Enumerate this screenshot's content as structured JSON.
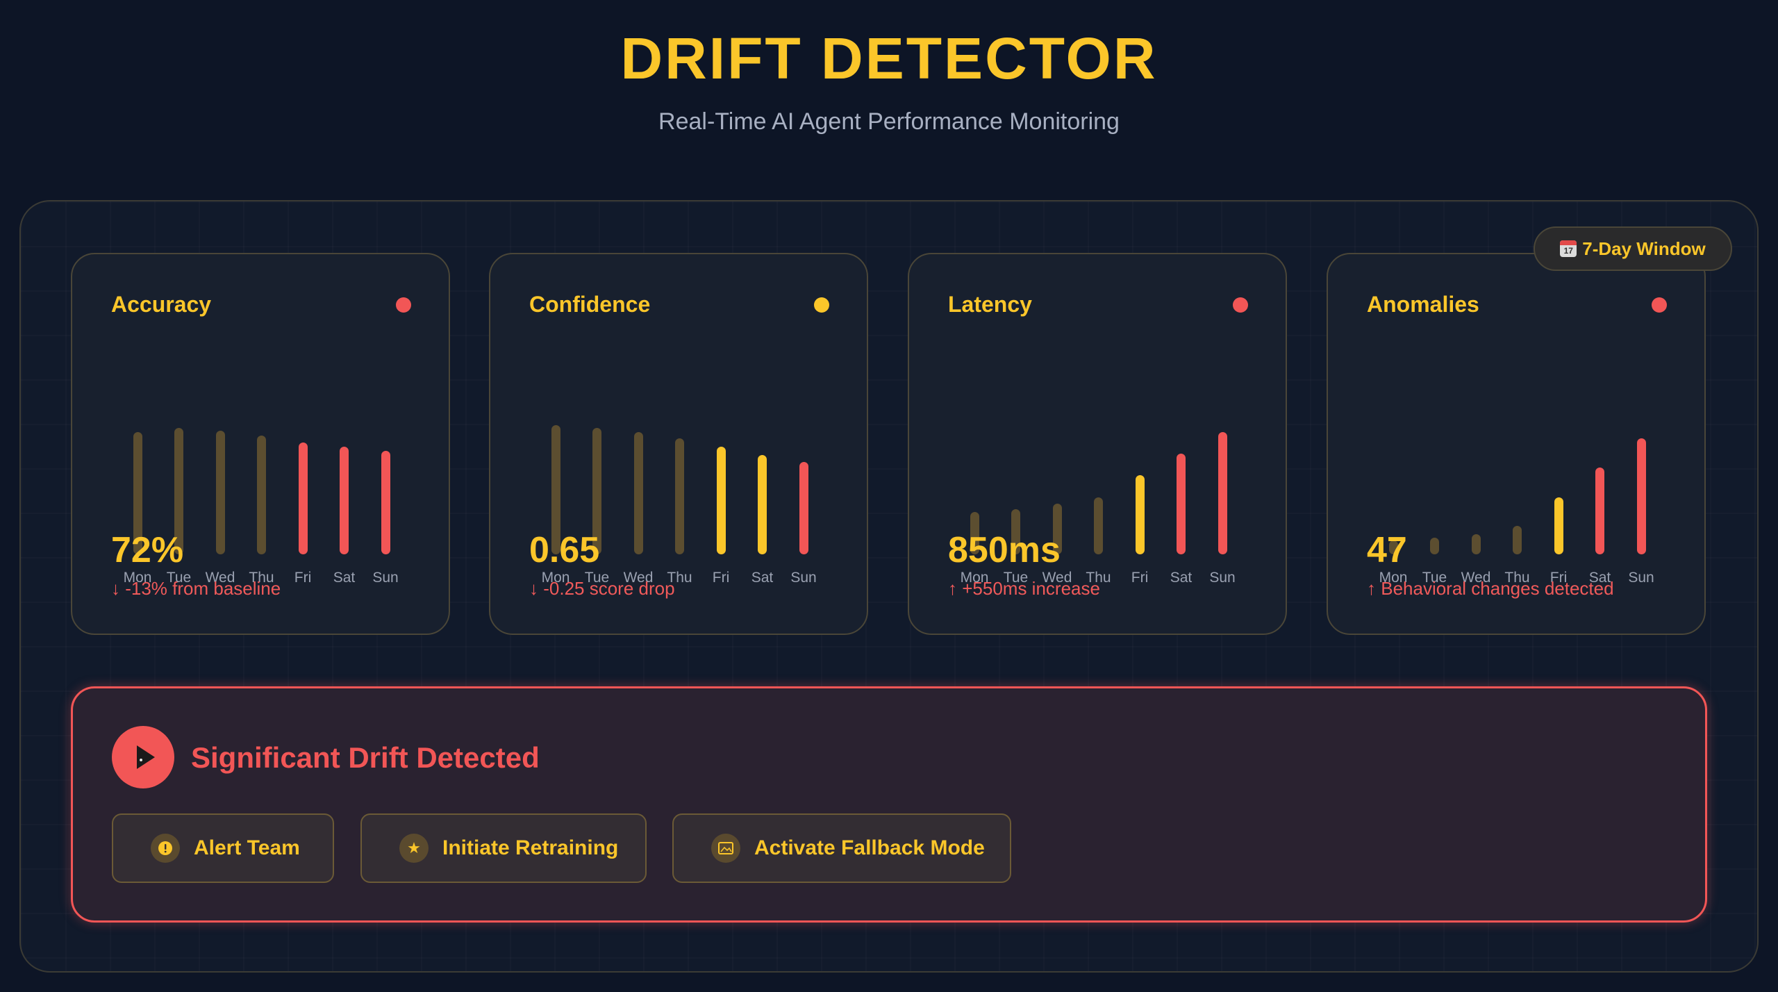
{
  "header": {
    "title": "DRIFT DETECTOR",
    "subtitle": "Real-Time AI Agent Performance Monitoring"
  },
  "window_badge": {
    "icon": "calendar-icon",
    "label": "7-Day Window"
  },
  "colors": {
    "accent": "#fbc62a",
    "critical": "#f25656",
    "muted_bar": "#5c4e30",
    "warning_bar": "#fbc62a",
    "critical_bar": "#f25656"
  },
  "days": [
    "Mon",
    "Tue",
    "Wed",
    "Thu",
    "Fri",
    "Sat",
    "Sun"
  ],
  "metrics": [
    {
      "id": "accuracy",
      "title": "Accuracy",
      "status": "critical",
      "value": "72%",
      "delta": "↓ -13% from baseline",
      "bars": [
        {
          "level": 0.9,
          "state": "normal"
        },
        {
          "level": 0.93,
          "state": "normal"
        },
        {
          "level": 0.91,
          "state": "normal"
        },
        {
          "level": 0.87,
          "state": "normal"
        },
        {
          "level": 0.82,
          "state": "critical"
        },
        {
          "level": 0.79,
          "state": "critical"
        },
        {
          "level": 0.76,
          "state": "critical"
        }
      ]
    },
    {
      "id": "confidence",
      "title": "Confidence",
      "status": "warning",
      "value": "0.65",
      "delta": "↓ -0.25 score drop",
      "bars": [
        {
          "level": 0.95,
          "state": "normal"
        },
        {
          "level": 0.93,
          "state": "normal"
        },
        {
          "level": 0.9,
          "state": "normal"
        },
        {
          "level": 0.85,
          "state": "normal"
        },
        {
          "level": 0.79,
          "state": "warning"
        },
        {
          "level": 0.73,
          "state": "warning"
        },
        {
          "level": 0.68,
          "state": "critical"
        }
      ]
    },
    {
      "id": "latency",
      "title": "Latency",
      "status": "critical",
      "value": "850ms",
      "delta": "↑ +550ms increase",
      "bars": [
        {
          "level": 0.31,
          "state": "normal"
        },
        {
          "level": 0.33,
          "state": "normal"
        },
        {
          "level": 0.37,
          "state": "normal"
        },
        {
          "level": 0.42,
          "state": "normal"
        },
        {
          "level": 0.58,
          "state": "warning"
        },
        {
          "level": 0.74,
          "state": "critical"
        },
        {
          "level": 0.9,
          "state": "critical"
        }
      ]
    },
    {
      "id": "anomalies",
      "title": "Anomalies",
      "status": "critical",
      "value": "47",
      "delta": "↑ Behavioral changes detected",
      "bars": [
        {
          "level": 0.1,
          "state": "normal"
        },
        {
          "level": 0.12,
          "state": "normal"
        },
        {
          "level": 0.15,
          "state": "normal"
        },
        {
          "level": 0.21,
          "state": "normal"
        },
        {
          "level": 0.42,
          "state": "warning"
        },
        {
          "level": 0.64,
          "state": "critical"
        },
        {
          "level": 0.85,
          "state": "critical"
        }
      ]
    }
  ],
  "alert": {
    "icon": "play-icon",
    "title": "Significant Drift Detected",
    "actions": [
      {
        "label": "Alert Team",
        "icon": "exclamation-icon"
      },
      {
        "label": "Initiate Retraining",
        "icon": "star-icon"
      },
      {
        "label": "Activate Fallback Mode",
        "icon": "image-icon"
      }
    ]
  }
}
